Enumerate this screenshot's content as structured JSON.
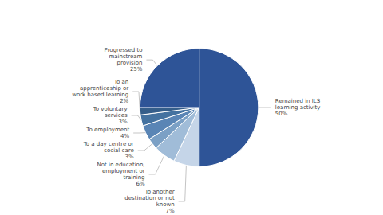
{
  "chart_data": {
    "type": "pie",
    "categories": [
      "Remained in ILS\nlearning activity\n50%",
      "To another\ndestination or not\nknown\n7%",
      "Not in education,\nemployment or\ntraining\n6%",
      "To a day centre or\nsocial care\n3%",
      "To employment\n4%",
      "To voluntary\nservices\n3%",
      "To an\napprenticeship or\nwork based learning\n2%",
      "Progressed to\nmainstream\nprovision\n25%"
    ],
    "values": [
      50,
      7,
      6,
      3,
      4,
      3,
      2,
      25
    ],
    "colors": [
      "#2e5497",
      "#c5d5e8",
      "#a0bcd8",
      "#7ba0c5",
      "#5a85b5",
      "#4472a0",
      "#355e8a",
      "#2e5497"
    ]
  }
}
